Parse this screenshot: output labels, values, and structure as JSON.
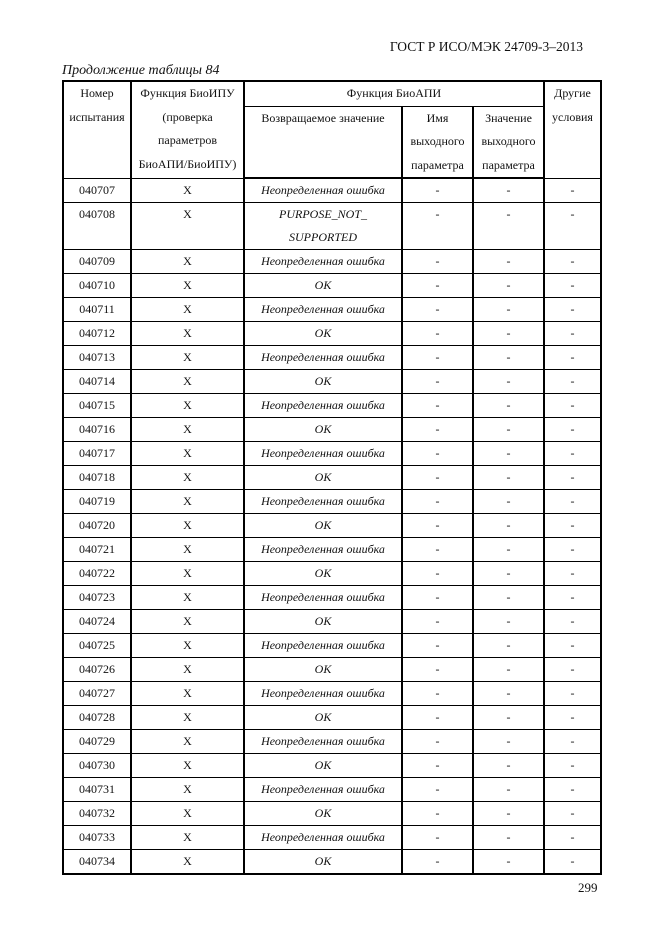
{
  "header": {
    "standard": "ГОСТ Р ИСО/МЭК 24709-3–2013"
  },
  "caption": "Продолжение таблицы 84",
  "page_number": "299",
  "table": {
    "col1": [
      "Номер",
      "испытания"
    ],
    "col2": [
      "Функция БиоИПУ",
      "(проверка",
      "параметров",
      "БиоАПИ/БиоИПУ)"
    ],
    "group": "Функция БиоАПИ",
    "sub1": "Возвращаемое значение",
    "sub2": [
      "Имя",
      "выходного",
      "параметра"
    ],
    "sub3": [
      "Значение",
      "выходного",
      "параметра"
    ],
    "col6": [
      "Другие",
      "условия"
    ],
    "rows": [
      {
        "id": "040707",
        "f": "X",
        "ret": [
          "Неопределенная ошибка"
        ],
        "name": "-",
        "val": "-",
        "other": "-"
      },
      {
        "id": "040708",
        "f": "X",
        "ret": [
          "PURPOSE_NOT_",
          "SUPPORTED"
        ],
        "name": "-",
        "val": "-",
        "other": "-"
      },
      {
        "id": "040709",
        "f": "X",
        "ret": [
          "Неопределенная ошибка"
        ],
        "name": "-",
        "val": "-",
        "other": "-"
      },
      {
        "id": "040710",
        "f": "X",
        "ret": [
          "OK"
        ],
        "name": "-",
        "val": "-",
        "other": "-"
      },
      {
        "id": "040711",
        "f": "X",
        "ret": [
          "Неопределенная ошибка"
        ],
        "name": "-",
        "val": "-",
        "other": "-"
      },
      {
        "id": "040712",
        "f": "X",
        "ret": [
          "OK"
        ],
        "name": "-",
        "val": "-",
        "other": "-"
      },
      {
        "id": "040713",
        "f": "X",
        "ret": [
          "Неопределенная ошибка"
        ],
        "name": "-",
        "val": "-",
        "other": "-"
      },
      {
        "id": "040714",
        "f": "X",
        "ret": [
          "OK"
        ],
        "name": "-",
        "val": "-",
        "other": "-"
      },
      {
        "id": "040715",
        "f": "X",
        "ret": [
          "Неопределенная ошибка"
        ],
        "name": "-",
        "val": "-",
        "other": "-"
      },
      {
        "id": "040716",
        "f": "X",
        "ret": [
          "OK"
        ],
        "name": "-",
        "val": "-",
        "other": "-"
      },
      {
        "id": "040717",
        "f": "X",
        "ret": [
          "Неопределенная ошибка"
        ],
        "name": "-",
        "val": "-",
        "other": "-"
      },
      {
        "id": "040718",
        "f": "X",
        "ret": [
          "OK"
        ],
        "name": "-",
        "val": "-",
        "other": "-"
      },
      {
        "id": "040719",
        "f": "X",
        "ret": [
          "Неопределенная ошибка"
        ],
        "name": "-",
        "val": "-",
        "other": "-"
      },
      {
        "id": "040720",
        "f": "X",
        "ret": [
          "OK"
        ],
        "name": "-",
        "val": "-",
        "other": "-"
      },
      {
        "id": "040721",
        "f": "X",
        "ret": [
          "Неопределенная ошибка"
        ],
        "name": "-",
        "val": "-",
        "other": "-"
      },
      {
        "id": "040722",
        "f": "X",
        "ret": [
          "OK"
        ],
        "name": "-",
        "val": "-",
        "other": "-"
      },
      {
        "id": "040723",
        "f": "X",
        "ret": [
          "Неопределенная ошибка"
        ],
        "name": "-",
        "val": "-",
        "other": "-"
      },
      {
        "id": "040724",
        "f": "X",
        "ret": [
          "OK"
        ],
        "name": "-",
        "val": "-",
        "other": "-"
      },
      {
        "id": "040725",
        "f": "X",
        "ret": [
          "Неопределенная ошибка"
        ],
        "name": "-",
        "val": "-",
        "other": "-"
      },
      {
        "id": "040726",
        "f": "X",
        "ret": [
          "OK"
        ],
        "name": "-",
        "val": "-",
        "other": "-"
      },
      {
        "id": "040727",
        "f": "X",
        "ret": [
          "Неопределенная ошибка"
        ],
        "name": "-",
        "val": "-",
        "other": "-"
      },
      {
        "id": "040728",
        "f": "X",
        "ret": [
          "OK"
        ],
        "name": "-",
        "val": "-",
        "other": "-"
      },
      {
        "id": "040729",
        "f": "X",
        "ret": [
          "Неопределенная ошибка"
        ],
        "name": "-",
        "val": "-",
        "other": "-"
      },
      {
        "id": "040730",
        "f": "X",
        "ret": [
          "OK"
        ],
        "name": "-",
        "val": "-",
        "other": "-"
      },
      {
        "id": "040731",
        "f": "X",
        "ret": [
          "Неопределенная ошибка"
        ],
        "name": "-",
        "val": "-",
        "other": "-"
      },
      {
        "id": "040732",
        "f": "X",
        "ret": [
          "OK"
        ],
        "name": "-",
        "val": "-",
        "other": "-"
      },
      {
        "id": "040733",
        "f": "X",
        "ret": [
          "Неопределенная ошибка"
        ],
        "name": "-",
        "val": "-",
        "other": "-"
      },
      {
        "id": "040734",
        "f": "X",
        "ret": [
          "OK"
        ],
        "name": "-",
        "val": "-",
        "other": "-"
      }
    ]
  }
}
